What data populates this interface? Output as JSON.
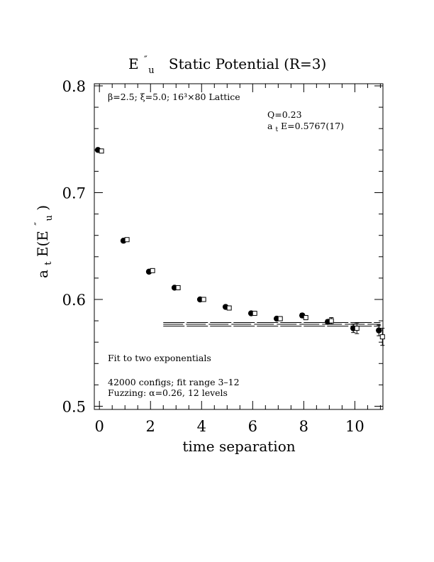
{
  "chart_data": {
    "type": "scatter",
    "title_base": "E",
    "title_sup": "″",
    "title_sub": "u",
    "title_rest": "Static Potential (R=3)",
    "xlabel": "time separation",
    "ylabel_base": "a",
    "ylabel_sub": "t",
    "ylabel_mid": "E(E",
    "ylabel_sup": "″",
    "ylabel_sub2": "u",
    "ylabel_end": " )",
    "xlim": [
      -0.2,
      11.1
    ],
    "ylim": [
      0.497,
      0.802
    ],
    "x_ticks": [
      0,
      2,
      4,
      6,
      8,
      10
    ],
    "x_tick_labels": [
      "0",
      "2",
      "4",
      "6",
      "8",
      "10"
    ],
    "y_ticks": [
      0.5,
      0.6,
      0.7,
      0.8
    ],
    "y_tick_labels": [
      "0.5",
      "0.6",
      "0.7",
      "0.8"
    ],
    "annotations": {
      "lattice": "β=2.5; ξ=5.0; 16³×80 Lattice",
      "q": "Q=0.23",
      "fit_base": "a",
      "fit_sub": "t",
      "fit_rest": "E=0.5767(17)",
      "fit_type": "Fit to two exponentials",
      "configs": "42000 configs; fit range 3–12",
      "fuzzing": "Fuzzing: α=0.26, 12 levels"
    },
    "series": [
      {
        "marker": "filled-circle",
        "x": [
          0,
          1,
          2,
          3,
          4,
          5,
          6,
          7,
          8,
          9,
          10,
          11
        ],
        "y": [
          0.74,
          0.655,
          0.626,
          0.611,
          0.6,
          0.593,
          0.587,
          0.582,
          0.585,
          0.579,
          0.573,
          0.571
        ],
        "err": [
          0.001,
          0.001,
          0.001,
          0.001,
          0.001,
          0.001,
          0.001,
          0.001,
          0.002,
          0.002,
          0.004,
          0.005
        ]
      },
      {
        "marker": "open-square",
        "x": [
          0,
          1,
          2,
          3,
          4,
          5,
          6,
          7,
          8,
          9,
          10,
          11
        ],
        "y": [
          0.739,
          0.656,
          0.627,
          0.611,
          0.6,
          0.592,
          0.587,
          0.582,
          0.583,
          0.58,
          0.573,
          0.565
        ],
        "err": [
          0.001,
          0.001,
          0.001,
          0.001,
          0.001,
          0.001,
          0.001,
          0.001,
          0.002,
          0.003,
          0.005,
          0.008
        ]
      }
    ],
    "fit": {
      "x_range": [
        2.5,
        11
      ],
      "center": 0.5767,
      "error": 0.0017
    }
  }
}
